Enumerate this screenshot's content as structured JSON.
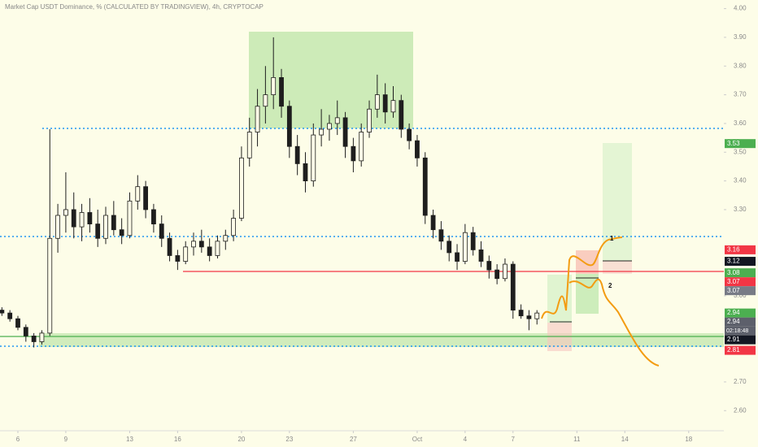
{
  "chart_data": {
    "type": "candlestick",
    "title": "Market Cap USDT Dominance, % (CALCULATED BY TRADINGVIEW), 4h, CRYPTOCAP",
    "xlim": [
      4.88,
      50.2
    ],
    "ylim": [
      2.53,
      4.03
    ],
    "xticks": [
      6,
      9,
      13,
      16,
      20,
      23,
      27,
      {
        "value": 31,
        "label": "Oct"
      },
      {
        "value": 34,
        "label": "4"
      },
      {
        "value": 37,
        "label": "7"
      },
      {
        "value": 41,
        "label": "11"
      },
      {
        "value": 44,
        "label": "14"
      },
      {
        "value": 48,
        "label": "18"
      }
    ],
    "yticks": [
      {
        "value": 4,
        "label": "4.00"
      },
      {
        "value": 3.9,
        "label": "3.90"
      },
      {
        "value": 3.8,
        "label": "3.80"
      },
      {
        "value": 3.7,
        "label": "3.70"
      },
      {
        "value": 3.6,
        "label": "3.60"
      },
      {
        "value": 3.5,
        "label": "3.50"
      },
      {
        "value": 3.4,
        "label": "3.40"
      },
      {
        "value": 3.3,
        "label": "3.30"
      },
      {
        "value": 3,
        "label": "3.00"
      },
      {
        "value": 2.7,
        "label": "2.70"
      },
      {
        "value": 2.6,
        "label": "2.60"
      }
    ],
    "up_color": "#fffde8",
    "down_color": "#1e1e1e",
    "x": [
      5,
      5.5,
      6,
      6.5,
      7,
      7.5,
      8,
      8.5,
      9,
      9.5,
      10,
      10.5,
      11,
      11.5,
      12,
      12.5,
      13,
      13.5,
      14,
      14.5,
      15,
      15.5,
      16,
      16.5,
      17,
      17.5,
      18,
      18.5,
      19,
      19.5,
      20,
      20.5,
      21,
      21.5,
      22,
      22.5,
      23,
      23.5,
      24,
      24.5,
      25,
      25.5,
      26,
      26.5,
      27,
      27.5,
      28,
      28.5,
      29,
      29.5,
      30,
      30.5,
      31,
      31.5,
      32,
      32.5,
      33,
      33.5,
      34,
      34.5,
      35,
      35.5,
      36,
      36.5,
      37,
      37.5,
      38,
      38.5
    ],
    "open": [
      2.95,
      2.94,
      2.92,
      2.89,
      2.86,
      2.84,
      2.87,
      3.2,
      3.28,
      3.3,
      3.24,
      3.29,
      3.25,
      3.2,
      3.28,
      3.23,
      3.21,
      3.33,
      3.38,
      3.3,
      3.25,
      3.2,
      3.14,
      3.12,
      3.17,
      3.19,
      3.17,
      3.14,
      3.19,
      3.21,
      3.27,
      3.48,
      3.57,
      3.66,
      3.7,
      3.76,
      3.66,
      3.52,
      3.46,
      3.4,
      3.56,
      3.58,
      3.6,
      3.62,
      3.52,
      3.47,
      3.57,
      3.65,
      3.7,
      3.64,
      3.68,
      3.58,
      3.54,
      3.48,
      3.28,
      3.23,
      3.19,
      3.15,
      3.12,
      3.22,
      3.16,
      3.12,
      3.09,
      3.06,
      3.11,
      2.95,
      2.93,
      2.92
    ],
    "high": [
      2.96,
      2.95,
      2.93,
      2.9,
      2.87,
      2.88,
      3.58,
      3.32,
      3.43,
      3.36,
      3.32,
      3.34,
      3.3,
      3.31,
      3.33,
      3.27,
      3.36,
      3.42,
      3.4,
      3.32,
      3.28,
      3.22,
      3.16,
      3.19,
      3.22,
      3.23,
      3.2,
      3.21,
      3.23,
      3.3,
      3.52,
      3.62,
      3.72,
      3.8,
      3.9,
      3.79,
      3.68,
      3.56,
      3.5,
      3.6,
      3.65,
      3.63,
      3.68,
      3.64,
      3.55,
      3.6,
      3.68,
      3.77,
      3.74,
      3.73,
      3.7,
      3.6,
      3.56,
      3.5,
      3.3,
      3.26,
      3.21,
      3.18,
      3.25,
      3.24,
      3.19,
      3.14,
      3.11,
      3.13,
      3.12,
      2.97,
      2.95,
      2.95
    ],
    "low": [
      2.93,
      2.91,
      2.88,
      2.84,
      2.82,
      2.83,
      2.86,
      3.15,
      3.22,
      3.2,
      3.19,
      3.22,
      3.17,
      3.18,
      3.21,
      3.18,
      3.2,
      3.3,
      3.27,
      3.22,
      3.17,
      3.12,
      3.09,
      3.11,
      3.14,
      3.15,
      3.12,
      3.13,
      3.16,
      3.19,
      3.26,
      3.45,
      3.52,
      3.6,
      3.65,
      3.62,
      3.48,
      3.42,
      3.36,
      3.38,
      3.52,
      3.54,
      3.56,
      3.48,
      3.43,
      3.45,
      3.55,
      3.62,
      3.6,
      3.62,
      3.55,
      3.51,
      3.45,
      3.25,
      3.2,
      3.16,
      3.12,
      3.09,
      3.11,
      3.14,
      3.1,
      3.06,
      3.04,
      3.05,
      2.92,
      2.92,
      2.88,
      2.9
    ],
    "close": [
      2.94,
      2.92,
      2.89,
      2.86,
      2.84,
      2.87,
      3.2,
      3.28,
      3.3,
      3.24,
      3.29,
      3.25,
      3.2,
      3.28,
      3.23,
      3.21,
      3.33,
      3.38,
      3.3,
      3.25,
      3.2,
      3.14,
      3.12,
      3.17,
      3.19,
      3.17,
      3.14,
      3.19,
      3.21,
      3.27,
      3.48,
      3.57,
      3.66,
      3.7,
      3.76,
      3.66,
      3.52,
      3.46,
      3.4,
      3.56,
      3.58,
      3.6,
      3.62,
      3.52,
      3.47,
      3.57,
      3.65,
      3.7,
      3.64,
      3.68,
      3.58,
      3.54,
      3.48,
      3.28,
      3.23,
      3.19,
      3.15,
      3.12,
      3.22,
      3.16,
      3.12,
      3.09,
      3.06,
      3.11,
      2.95,
      2.93,
      2.92,
      2.94
    ],
    "price_labels": [
      {
        "value": 3.53,
        "color": "#4caf50"
      },
      {
        "value": 3.16,
        "color": "#f23645"
      },
      {
        "value": 3.12,
        "color": "#131722"
      },
      {
        "value": 3.08,
        "color": "#4caf50"
      },
      {
        "value": 3.07,
        "color": "#f23645"
      },
      {
        "value": 3.07,
        "color": "#787b86"
      },
      {
        "value": 2.94,
        "color": "#4caf50"
      },
      {
        "value": 2.94,
        "color": "#5d606b"
      },
      {
        "value": 2.91,
        "color": "#131722"
      },
      {
        "value": 2.81,
        "color": "#f23645"
      }
    ],
    "countdown": "02:18:48",
    "annotations": [
      "1",
      "2"
    ]
  }
}
